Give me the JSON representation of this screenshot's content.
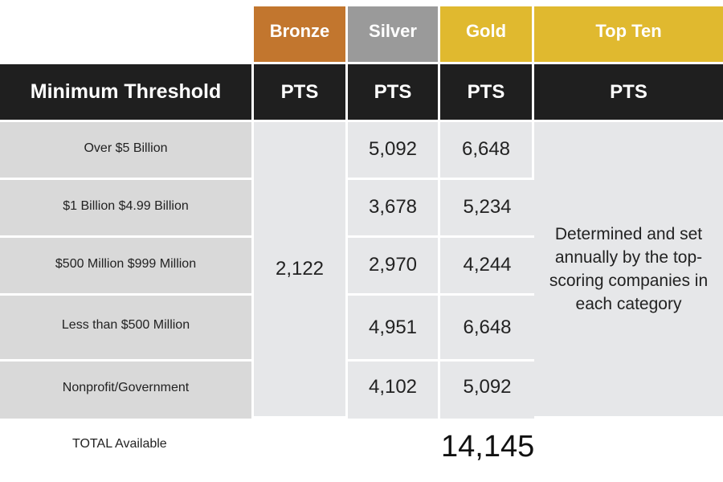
{
  "tiers": {
    "bronze": "Bronze",
    "silver": "Silver",
    "gold": "Gold",
    "top_ten": "Top Ten"
  },
  "header": {
    "threshold_label": "Minimum Threshold",
    "bronze_unit": "PTS",
    "silver_unit": "PTS",
    "gold_unit": "PTS",
    "top_ten_unit": "PTS"
  },
  "rows": [
    {
      "label": "Over $5 Billion",
      "silver": "5,092",
      "gold": "6,648"
    },
    {
      "label": "$1 Billion $4.99 Billion",
      "silver": "3,678",
      "gold": "5,234"
    },
    {
      "label": "$500 Million $999 Million",
      "silver": "2,970",
      "gold": "4,244"
    },
    {
      "label": "Less than $500 Million",
      "silver": "4,951",
      "gold": "6,648"
    },
    {
      "label": "Nonprofit/Government",
      "silver": "4,102",
      "gold": "5,092"
    }
  ],
  "bronze_value": "2,122",
  "top_ten_note": "Determined and set annually by the top-scoring companies in each category",
  "total": {
    "label": "TOTAL Available",
    "value": "14,145"
  },
  "colors": {
    "bronze": "#c2762e",
    "silver": "#9a9a9a",
    "gold": "#e0b92f",
    "header_dark": "#1f1f1f",
    "label_bg": "#d9d9d9",
    "cell_bg": "#e6e7e9"
  }
}
